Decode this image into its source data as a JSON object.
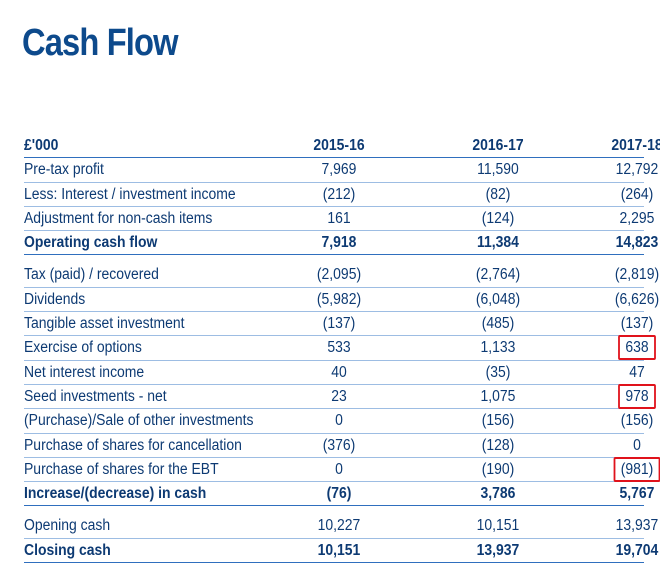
{
  "title": "Cash Flow",
  "header": {
    "label": "£'000",
    "col1": "2015-16",
    "col2": "2016-17",
    "col3": "2017-18"
  },
  "rows": [
    {
      "label": "Pre-tax profit",
      "v1": "7,969",
      "v2": "11,590",
      "v3": "12,792"
    },
    {
      "label": "Less: Interest / investment income",
      "v1": "(212)",
      "v2": "(82)",
      "v3": "(264)"
    },
    {
      "label": "Adjustment for non-cash items",
      "v1": "161",
      "v2": "(124)",
      "v3": "2,295"
    },
    {
      "label": "Operating cash flow",
      "v1": "7,918",
      "v2": "11,384",
      "v3": "14,823"
    },
    {
      "label": "Tax (paid) / recovered",
      "v1": "(2,095)",
      "v2": "(2,764)",
      "v3": "(2,819)"
    },
    {
      "label": "Dividends",
      "v1": "(5,982)",
      "v2": "(6,048)",
      "v3": "(6,626)"
    },
    {
      "label": "Tangible asset investment",
      "v1": "(137)",
      "v2": "(485)",
      "v3": "(137)"
    },
    {
      "label": "Exercise of options",
      "v1": "533",
      "v2": "1,133",
      "v3": "638"
    },
    {
      "label": "Net interest income",
      "v1": "40",
      "v2": "(35)",
      "v3": "47"
    },
    {
      "label": "Seed investments - net",
      "v1": "23",
      "v2": "1,075",
      "v3": "978"
    },
    {
      "label": "(Purchase)/Sale of other investments",
      "v1": "0",
      "v2": "(156)",
      "v3": "(156)"
    },
    {
      "label": "Purchase of shares for cancellation",
      "v1": "(376)",
      "v2": "(128)",
      "v3": "0"
    },
    {
      "label": "Purchase of shares for the EBT",
      "v1": "0",
      "v2": "(190)",
      "v3": "(981)"
    },
    {
      "label": "Increase/(decrease) in cash",
      "v1": "(76)",
      "v2": "3,786",
      "v3": "5,767"
    },
    {
      "label": "Opening cash",
      "v1": "10,227",
      "v2": "10,151",
      "v3": "13,937"
    },
    {
      "label": "Closing cash",
      "v1": "10,151",
      "v2": "13,937",
      "v3": "19,704"
    }
  ]
}
